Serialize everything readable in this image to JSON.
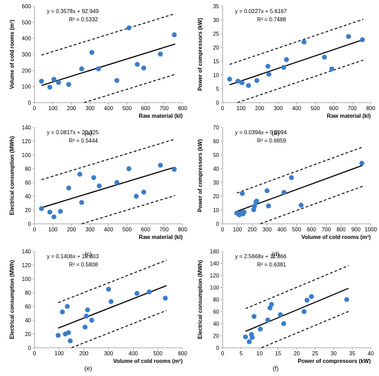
{
  "chart_data": [
    {
      "id": "a",
      "type": "scatter",
      "caption": "(a)",
      "xlabel": "Raw material (kl)",
      "ylabel": "Volume of cold rooms (m³)",
      "equation": "y = 0.3578x + 92.949",
      "r2": "R² = 0.5332",
      "xlim": [
        0,
        800
      ],
      "xticks": [
        0,
        100,
        200,
        300,
        400,
        500,
        600,
        700,
        800
      ],
      "ylim": [
        0,
        600
      ],
      "yticks": [
        0,
        100,
        200,
        300,
        400,
        500,
        600
      ],
      "points": [
        [
          38,
          133
        ],
        [
          83,
          96
        ],
        [
          105,
          145
        ],
        [
          130,
          125
        ],
        [
          185,
          113
        ],
        [
          255,
          210
        ],
        [
          310,
          312
        ],
        [
          345,
          210
        ],
        [
          445,
          138
        ],
        [
          510,
          465
        ],
        [
          555,
          238
        ],
        [
          590,
          215
        ],
        [
          680,
          302
        ],
        [
          755,
          422
        ]
      ],
      "fit": {
        "slope": 0.3578,
        "intercept": 92.949,
        "x": [
          38,
          760
        ]
      },
      "bands": {
        "upper": {
          "slope": 0.3578,
          "intercept": 282,
          "x": [
            38,
            760
          ]
        },
        "lower": {
          "slope": 0.3578,
          "intercept": -96,
          "x": [
            268,
            760
          ]
        }
      }
    },
    {
      "id": "b",
      "type": "scatter",
      "caption": "(b)",
      "xlabel": "Raw material (kl)",
      "ylabel": "Power of compressors (kW)",
      "equation": "y = 0.0227x + 5.6167",
      "r2": "R² = 0.7488",
      "xlim": [
        0,
        800
      ],
      "xticks": [
        0,
        100,
        200,
        300,
        400,
        500,
        600,
        700,
        800
      ],
      "ylim": [
        0,
        35
      ],
      "yticks": [
        0,
        5,
        10,
        15,
        20,
        25,
        30,
        35
      ],
      "points": [
        [
          38,
          8.5
        ],
        [
          83,
          7.8
        ],
        [
          105,
          7.2
        ],
        [
          140,
          6.2
        ],
        [
          185,
          8.0
        ],
        [
          245,
          13.2
        ],
        [
          250,
          10.3
        ],
        [
          330,
          12.8
        ],
        [
          345,
          15.6
        ],
        [
          440,
          22.0
        ],
        [
          550,
          16.5
        ],
        [
          590,
          12.2
        ],
        [
          680,
          24.0
        ],
        [
          755,
          22.8
        ]
      ],
      "fit": {
        "slope": 0.0227,
        "intercept": 5.6167,
        "x": [
          38,
          760
        ]
      },
      "bands": {
        "upper": {
          "slope": 0.0227,
          "intercept": 13.0,
          "x": [
            38,
            760
          ]
        },
        "lower": {
          "slope": 0.0227,
          "intercept": -1.8,
          "x": [
            80,
            760
          ]
        }
      }
    },
    {
      "id": "c",
      "type": "scatter",
      "caption": "(c)",
      "xlabel": "Raw material (kl)",
      "ylabel": "Electrical consumption (MWh)",
      "equation": "y = 0.0817x + 20.325",
      "r2": "R² = 0.5444",
      "xlim": [
        0,
        800
      ],
      "xticks": [
        0,
        100,
        200,
        300,
        400,
        500,
        600,
        700,
        800
      ],
      "ylim": [
        0,
        140
      ],
      "yticks": [
        0,
        20,
        40,
        60,
        80,
        100,
        120,
        140
      ],
      "points": [
        [
          38,
          22
        ],
        [
          83,
          17
        ],
        [
          105,
          10
        ],
        [
          140,
          18
        ],
        [
          185,
          52
        ],
        [
          245,
          72
        ],
        [
          255,
          31
        ],
        [
          320,
          67
        ],
        [
          350,
          55
        ],
        [
          445,
          60
        ],
        [
          510,
          80
        ],
        [
          550,
          40
        ],
        [
          590,
          46
        ],
        [
          680,
          85
        ],
        [
          755,
          79
        ]
      ],
      "fit": {
        "slope": 0.0817,
        "intercept": 20.325,
        "x": [
          38,
          760
        ]
      },
      "bands": {
        "upper": {
          "slope": 0.0817,
          "intercept": 61.0,
          "x": [
            38,
            760
          ]
        },
        "lower": {
          "slope": 0.0817,
          "intercept": -21.0,
          "x": [
            255,
            760
          ]
        }
      }
    },
    {
      "id": "d",
      "type": "scatter",
      "caption": "(d)",
      "xlabel": "Volume of cold rooms (m³)",
      "ylabel": "Power of compressors (kW)",
      "equation": "y = 0.0394x + 5.2094",
      "r2": "R² = 0.6859",
      "xlim": [
        0,
        1000
      ],
      "xticks": [
        0,
        100,
        200,
        300,
        400,
        500,
        600,
        700,
        800,
        900,
        1000
      ],
      "ylim": [
        0,
        70
      ],
      "yticks": [
        0,
        10,
        20,
        30,
        40,
        50,
        60,
        70
      ],
      "points": [
        [
          96,
          7.8
        ],
        [
          113,
          6.5
        ],
        [
          125,
          8.0
        ],
        [
          133,
          22.0
        ],
        [
          138,
          7.2
        ],
        [
          145,
          8.5
        ],
        [
          210,
          10.2
        ],
        [
          215,
          12.8
        ],
        [
          225,
          15.8
        ],
        [
          230,
          16.5
        ],
        [
          300,
          24.0
        ],
        [
          310,
          13.0
        ],
        [
          415,
          22.8
        ],
        [
          465,
          33.5
        ],
        [
          530,
          13.5
        ],
        [
          940,
          44.0
        ]
      ],
      "fit": {
        "slope": 0.0394,
        "intercept": 5.2094,
        "x": [
          96,
          945
        ]
      },
      "bands": {
        "upper": {
          "slope": 0.0394,
          "intercept": 18.5,
          "x": [
            96,
            945
          ]
        },
        "lower": {
          "slope": 0.0394,
          "intercept": -10.0,
          "x": [
            255,
            945
          ]
        }
      }
    },
    {
      "id": "e",
      "type": "scatter",
      "caption": "(e)",
      "xlabel": "Volume of cold rooms (m³)",
      "ylabel": "Electrical consumption (MWh)",
      "equation": "y = 0.1406x + 15.003",
      "r2": "R² = 0.5808",
      "xlim": [
        0,
        600
      ],
      "xticks": [
        0,
        100,
        200,
        300,
        400,
        500,
        600
      ],
      "ylim": [
        0,
        140
      ],
      "yticks": [
        0,
        20,
        40,
        60,
        80,
        100,
        120,
        140
      ],
      "points": [
        [
          96,
          18
        ],
        [
          113,
          52
        ],
        [
          125,
          20
        ],
        [
          133,
          60
        ],
        [
          138,
          22
        ],
        [
          145,
          10
        ],
        [
          205,
          30
        ],
        [
          210,
          46
        ],
        [
          215,
          55
        ],
        [
          232,
          40
        ],
        [
          300,
          85
        ],
        [
          310,
          67
        ],
        [
          415,
          79
        ],
        [
          465,
          81
        ],
        [
          530,
          72
        ]
      ],
      "fit": {
        "slope": 0.1406,
        "intercept": 15.003,
        "x": [
          96,
          535
        ]
      },
      "bands": {
        "upper": {
          "slope": 0.1406,
          "intercept": 52.0,
          "x": [
            96,
            535
          ]
        },
        "lower": {
          "slope": 0.1406,
          "intercept": -21.0,
          "x": [
            150,
            535
          ]
        }
      }
    },
    {
      "id": "f",
      "type": "scatter",
      "caption": "(f)",
      "xlabel": "Power of compressors (kW)",
      "ylabel": "Electrical consumption (MWh)",
      "equation": "y = 2.5668x + 11.366",
      "r2": "R² = 0.6381",
      "xlim": [
        0,
        40
      ],
      "xticks": [
        0,
        5,
        10,
        15,
        20,
        25,
        30,
        35,
        40
      ],
      "ylim": [
        0,
        160
      ],
      "yticks": [
        0,
        20,
        40,
        60,
        80,
        100,
        120,
        140,
        160
      ],
      "points": [
        [
          6.2,
          18
        ],
        [
          7.2,
          10
        ],
        [
          7.8,
          22
        ],
        [
          8.0,
          17
        ],
        [
          8.5,
          52
        ],
        [
          10.2,
          31
        ],
        [
          12.2,
          46
        ],
        [
          12.8,
          66
        ],
        [
          13.2,
          72
        ],
        [
          15.6,
          55
        ],
        [
          16.5,
          40
        ],
        [
          22.0,
          60
        ],
        [
          22.8,
          79
        ],
        [
          24.0,
          85
        ],
        [
          33.5,
          80
        ]
      ],
      "fit": {
        "slope": 2.5668,
        "intercept": 11.366,
        "x": [
          6.2,
          34
        ]
      },
      "bands": {
        "upper": {
          "slope": 2.5668,
          "intercept": 49.0,
          "x": [
            6.2,
            34
          ]
        },
        "lower": {
          "slope": 2.5668,
          "intercept": -27.0,
          "x": [
            10.5,
            34
          ]
        }
      }
    }
  ]
}
